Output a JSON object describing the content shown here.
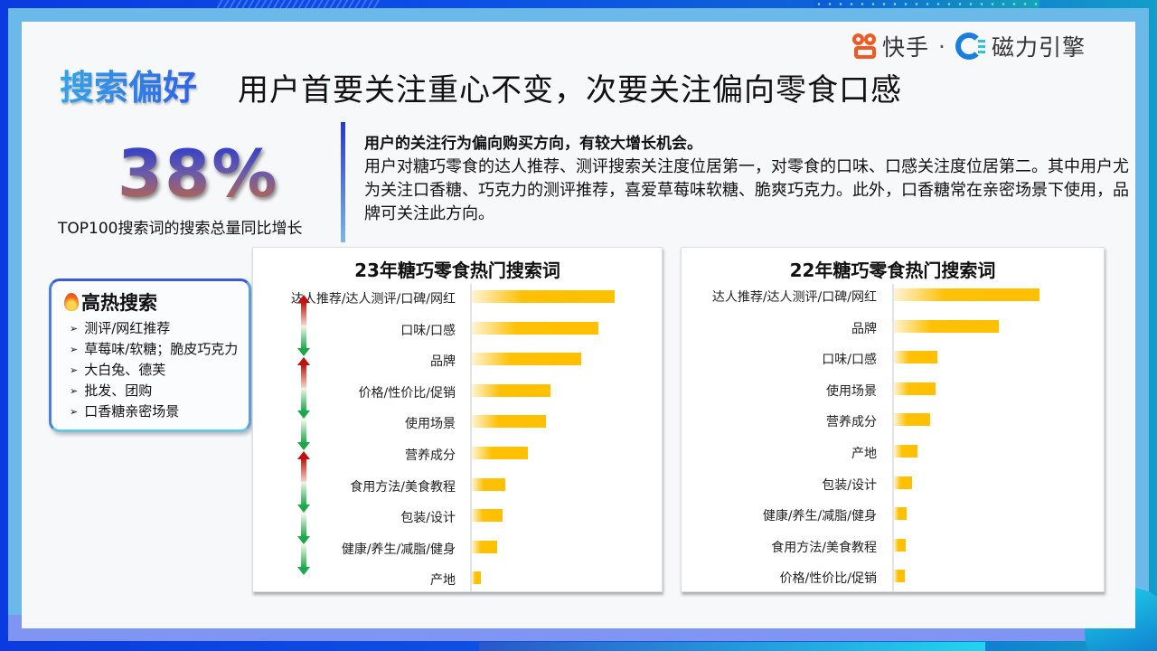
{
  "header": {
    "keyword": "搜索偏好",
    "title": "用户首要关注重心不变，次要关注偏向零食口感",
    "logo_kuaishou": "快手",
    "logo_separator": "·",
    "logo_cili": "磁力引擎"
  },
  "stat": {
    "value": "38%",
    "caption": "TOP100搜索词的搜索总量同比增长"
  },
  "description": {
    "lead": "用户的关注行为偏向购买方向，有较大增长机会。",
    "body": "用户对糖巧零食的达人推荐、测评搜索关注度位居第一，对零食的口味、口感关注度位居第二。其中用户尤为关注口香糖、巧克力的测评推荐，喜爱草莓味软糖、脆爽巧克力。此外，口香糖常在亲密场景下使用，品牌可关注此方向。"
  },
  "hot_search": {
    "icon": "fire-icon",
    "title": "高热搜索",
    "items": [
      "测评/网红推荐",
      "草莓味/软糖；脆皮巧克力",
      "大白兔、德芙",
      "批发、团购",
      "口香糖亲密场景"
    ]
  },
  "colors": {
    "bar": "#ffc000",
    "up_arrow": "#c01010",
    "down_arrow": "#1ba84a",
    "title_accent": "#2e62e6"
  },
  "chart_data": [
    {
      "type": "bar",
      "orientation": "horizontal",
      "title": "23年糖巧零食热门搜索词",
      "categories": [
        "达人推荐/达人测评/口碑/网红",
        "口味/口感",
        "品牌",
        "价格/性价比/促销",
        "使用场景",
        "营养成分",
        "食用方法/美食教程",
        "包装/设计",
        "健康/养生/减脂/健身",
        "产地"
      ],
      "values": [
        158,
        140,
        121,
        87,
        82,
        62,
        37,
        34,
        28,
        10
      ],
      "rank_change_vs_22": [
        "",
        "up",
        "down",
        "up",
        "down",
        "down",
        "up",
        "down",
        "down",
        "down"
      ],
      "xlabel": "",
      "ylabel": "",
      "grid": false,
      "value_labels": false
    },
    {
      "type": "bar",
      "orientation": "horizontal",
      "title": "22年糖巧零食热门搜索词",
      "categories": [
        "达人推荐/达人测评/口碑/网红",
        "品牌",
        "口味/口感",
        "使用场景",
        "营养成分",
        "产地",
        "包装/设计",
        "健康/养生/减脂/健身",
        "食用方法/美食教程",
        "价格/性价比/促销"
      ],
      "values": [
        161,
        116,
        48,
        46,
        40,
        26,
        20,
        14,
        13,
        12
      ],
      "xlabel": "",
      "ylabel": "",
      "grid": false,
      "value_labels": false
    }
  ]
}
